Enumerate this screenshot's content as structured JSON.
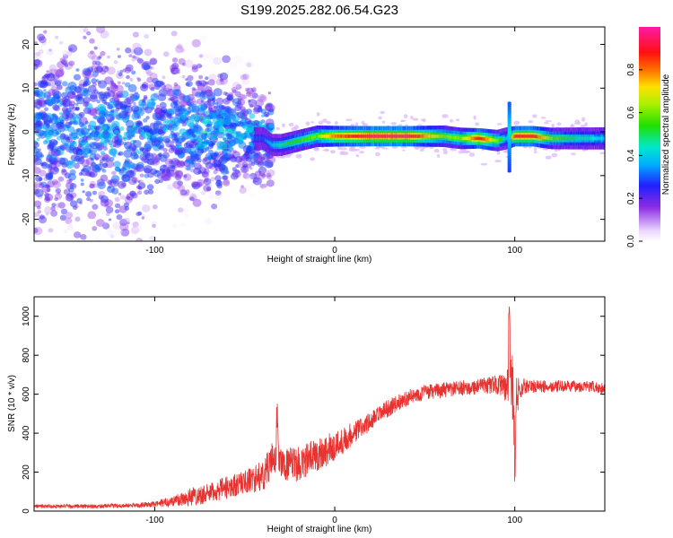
{
  "figure_title": "S199.2025.282.06.54.G23",
  "colors": {
    "snr_line": "#e8322f",
    "scatter_base": "#7a2cff",
    "background": "#ffffff",
    "axis": "#000000"
  },
  "chart_data": [
    {
      "type": "heatmap",
      "title": "S199.2025.282.06.54.G23",
      "xlabel": "Height of straight line (km)",
      "ylabel": "Frequency (Hz)",
      "xlim": [
        -167,
        150
      ],
      "ylim": [
        -25,
        24
      ],
      "x_ticks": [
        -100,
        0,
        100
      ],
      "y_ticks": [
        -20,
        -10,
        0,
        10,
        20
      ],
      "colorbar": {
        "label": "Normalized spectral amplitude",
        "range": [
          0.0,
          1.0
        ],
        "ticks": [
          0.0,
          0.2,
          0.4,
          0.6,
          0.8
        ],
        "tick_labels": [
          "0.0",
          "0.2",
          "0.4",
          "0.6",
          "0.8"
        ],
        "colormap": "rainbow (white→violet→blue→cyan→green→yellow→red→magenta)"
      },
      "ridge": {
        "description": "dominant frequency ridge vs height",
        "x": [
          -40,
          -35,
          -30,
          -20,
          -10,
          0,
          20,
          40,
          60,
          70,
          80,
          90,
          95,
          100,
          110,
          120,
          130,
          140,
          150
        ],
        "frequency_hz": [
          -1.5,
          -3,
          -3,
          -2,
          -1,
          -1,
          -1,
          -1,
          -1,
          -1.5,
          -1.5,
          -2,
          -1.5,
          -1,
          -1,
          -1.5,
          -1.5,
          -1.5,
          -1.5
        ],
        "amplitude": [
          0.3,
          0.4,
          0.45,
          0.55,
          0.6,
          0.8,
          0.95,
          0.95,
          0.6,
          0.6,
          0.9,
          0.6,
          0.4,
          0.9,
          0.9,
          0.6,
          0.5,
          0.45,
          0.4
        ]
      },
      "spike": {
        "x": 97,
        "frequency_range_hz": [
          -9,
          7
        ]
      }
    },
    {
      "type": "line",
      "title": "",
      "xlabel": "Height of straight line (km)",
      "ylabel": "SNR (10 * v/v)",
      "xlim": [
        -167,
        150
      ],
      "ylim": [
        0,
        1100
      ],
      "x_ticks": [
        -100,
        0,
        100
      ],
      "y_ticks": [
        0,
        200,
        400,
        600,
        800,
        1000
      ],
      "series": [
        {
          "name": "SNR",
          "x": [
            -167,
            -150,
            -130,
            -110,
            -100,
            -90,
            -80,
            -70,
            -60,
            -50,
            -40,
            -35,
            -30,
            -20,
            -10,
            0,
            10,
            20,
            30,
            40,
            50,
            60,
            70,
            80,
            90,
            95,
            100,
            105,
            110,
            120,
            130,
            140,
            150
          ],
          "y": [
            25,
            25,
            25,
            30,
            35,
            50,
            75,
            90,
            120,
            150,
            180,
            260,
            240,
            240,
            290,
            330,
            400,
            460,
            530,
            580,
            610,
            620,
            630,
            640,
            650,
            640,
            600,
            640,
            640,
            640,
            640,
            640,
            630
          ],
          "noise_amplitude": [
            10,
            10,
            10,
            12,
            15,
            30,
            50,
            50,
            60,
            60,
            80,
            90,
            80,
            90,
            90,
            80,
            60,
            50,
            45,
            40,
            40,
            40,
            40,
            40,
            50,
            60,
            60,
            45,
            35,
            30,
            30,
            30,
            30
          ],
          "peaks": [
            {
              "x": -32,
              "y": 570
            },
            {
              "x": 97,
              "y": 1090
            },
            {
              "x": 100,
              "y": 190
            }
          ]
        }
      ]
    }
  ]
}
